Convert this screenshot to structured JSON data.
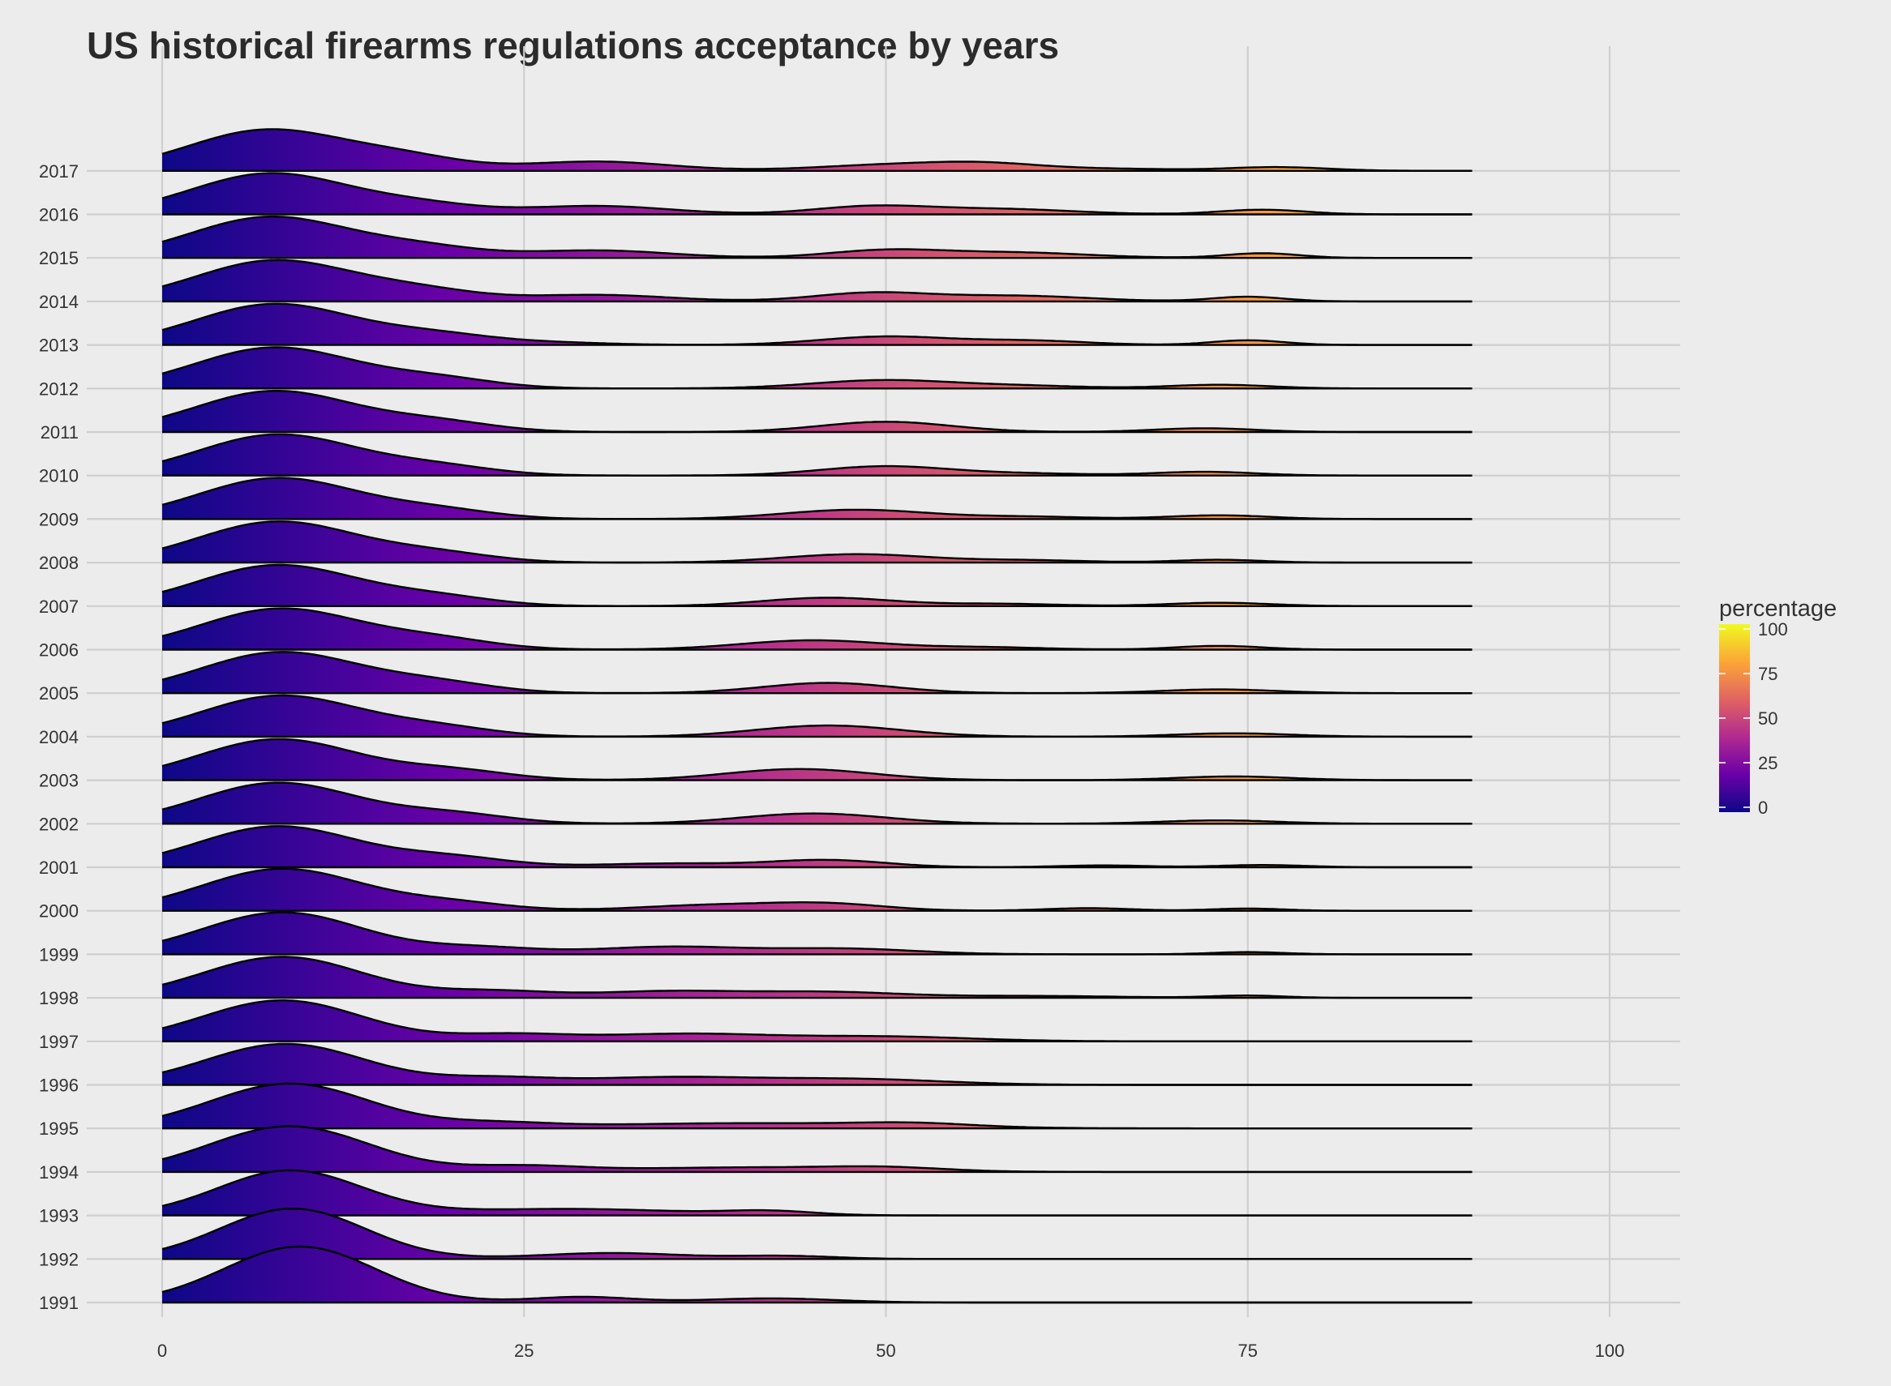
{
  "chart_data": {
    "type": "ridgeline",
    "title": "US historical firearms regulations acceptance by years",
    "xlabel": "",
    "ylabel": "",
    "xlim": [
      -5,
      105
    ],
    "x_ticks": [
      0,
      25,
      50,
      75,
      100
    ],
    "x_tick_labels": [
      "0",
      "25",
      "50",
      "75",
      "100"
    ],
    "density_range": [
      0,
      90.5
    ],
    "grid": true,
    "legend": {
      "title": "percentage",
      "placement": "right",
      "ticks": [
        0,
        25,
        50,
        75,
        100
      ],
      "tick_labels": [
        "0",
        "25",
        "50",
        "75",
        "100"
      ],
      "palette": [
        "#0d0887",
        "#6a00a8",
        "#b12a90",
        "#e16462",
        "#fca636",
        "#f0f921"
      ]
    },
    "series": [
      {
        "name": "1991",
        "peaks": [
          [
            9.5,
            3.0,
            5.2
          ],
          [
            29,
            0.3,
            3.5
          ],
          [
            42,
            0.22,
            4.5
          ]
        ]
      },
      {
        "name": "1992",
        "peaks": [
          [
            9.0,
            2.7,
            5.0
          ],
          [
            31,
            0.32,
            5.0
          ],
          [
            43,
            0.16,
            3.5
          ]
        ]
      },
      {
        "name": "1993",
        "peaks": [
          [
            8.8,
            2.4,
            5.0
          ],
          [
            28,
            0.35,
            8.0
          ],
          [
            42,
            0.2,
            3.0
          ]
        ]
      },
      {
        "name": "1994",
        "peaks": [
          [
            8.8,
            2.45,
            5.5
          ],
          [
            25,
            0.3,
            4.0
          ],
          [
            40,
            0.24,
            8.0
          ],
          [
            50,
            0.18,
            4.0
          ]
        ]
      },
      {
        "name": "1995",
        "peaks": [
          [
            8.8,
            2.4,
            5.5
          ],
          [
            23,
            0.25,
            4.0
          ],
          [
            40,
            0.28,
            10.0
          ],
          [
            52,
            0.18,
            4.0
          ]
        ]
      },
      {
        "name": "1996",
        "peaks": [
          [
            8.5,
            2.2,
            5.5
          ],
          [
            23,
            0.35,
            4.0
          ],
          [
            35,
            0.4,
            6.0
          ],
          [
            48,
            0.3,
            6.0
          ]
        ]
      },
      {
        "name": "1997",
        "peaks": [
          [
            8.3,
            2.2,
            5.5
          ],
          [
            24,
            0.35,
            4.0
          ],
          [
            36,
            0.4,
            6.0
          ],
          [
            50,
            0.25,
            6.0
          ]
        ]
      },
      {
        "name": "1998",
        "peaks": [
          [
            8.3,
            2.2,
            5.5
          ],
          [
            23,
            0.35,
            4.0
          ],
          [
            35,
            0.35,
            5.0
          ],
          [
            46,
            0.3,
            5.0
          ],
          [
            60,
            0.1,
            6.0
          ],
          [
            75,
            0.12,
            2.5
          ]
        ]
      },
      {
        "name": "1999",
        "peaks": [
          [
            8.3,
            2.25,
            5.5
          ],
          [
            22,
            0.35,
            4.0
          ],
          [
            35,
            0.4,
            5.0
          ],
          [
            47,
            0.3,
            5.0
          ],
          [
            75,
            0.12,
            2.5
          ]
        ]
      },
      {
        "name": "2000",
        "peaks": [
          [
            8.3,
            2.25,
            5.5
          ],
          [
            20,
            0.4,
            4.0
          ],
          [
            38,
            0.3,
            5.0
          ],
          [
            46,
            0.35,
            4.0
          ],
          [
            64,
            0.14,
            3.0
          ],
          [
            75,
            0.12,
            2.5
          ]
        ]
      },
      {
        "name": "2001",
        "peaks": [
          [
            8.0,
            2.2,
            5.5
          ],
          [
            20,
            0.5,
            4.0
          ],
          [
            35,
            0.2,
            5.0
          ],
          [
            46,
            0.38,
            4.0
          ],
          [
            65,
            0.1,
            3.0
          ],
          [
            76,
            0.12,
            3.0
          ]
        ]
      },
      {
        "name": "2002",
        "peaks": [
          [
            8.0,
            2.2,
            5.5
          ],
          [
            20,
            0.5,
            4.0
          ],
          [
            45,
            0.55,
            5.0
          ],
          [
            73,
            0.18,
            4.0
          ]
        ]
      },
      {
        "name": "2003",
        "peaks": [
          [
            8.0,
            2.2,
            5.5
          ],
          [
            20,
            0.5,
            4.0
          ],
          [
            44,
            0.6,
            5.0
          ],
          [
            74,
            0.2,
            4.0
          ]
        ]
      },
      {
        "name": "2004",
        "peaks": [
          [
            8.2,
            2.2,
            5.5
          ],
          [
            19,
            0.45,
            4.0
          ],
          [
            46,
            0.6,
            5.0
          ],
          [
            74,
            0.18,
            4.0
          ]
        ]
      },
      {
        "name": "2005",
        "peaks": [
          [
            8.2,
            2.2,
            5.5
          ],
          [
            19,
            0.5,
            4.0
          ],
          [
            46,
            0.55,
            4.5
          ],
          [
            73,
            0.2,
            4.0
          ]
        ]
      },
      {
        "name": "2006",
        "peaks": [
          [
            8.2,
            2.2,
            5.5
          ],
          [
            19,
            0.5,
            4.0
          ],
          [
            45,
            0.5,
            5.0
          ],
          [
            57,
            0.12,
            4.0
          ],
          [
            73,
            0.2,
            3.0
          ]
        ]
      },
      {
        "name": "2007",
        "peaks": [
          [
            8.0,
            2.2,
            5.5
          ],
          [
            19,
            0.45,
            4.0
          ],
          [
            46,
            0.45,
            4.5
          ],
          [
            58,
            0.12,
            4.0
          ],
          [
            73,
            0.18,
            3.5
          ]
        ]
      },
      {
        "name": "2008",
        "peaks": [
          [
            8.0,
            2.2,
            5.5
          ],
          [
            19,
            0.45,
            4.0
          ],
          [
            48,
            0.45,
            5.0
          ],
          [
            60,
            0.12,
            4.0
          ],
          [
            73,
            0.15,
            3.0
          ]
        ]
      },
      {
        "name": "2009",
        "peaks": [
          [
            8.0,
            2.2,
            5.5
          ],
          [
            19,
            0.45,
            4.0
          ],
          [
            48,
            0.5,
            5.0
          ],
          [
            60,
            0.12,
            4.0
          ],
          [
            73,
            0.2,
            3.5
          ]
        ]
      },
      {
        "name": "2010",
        "peaks": [
          [
            8.0,
            2.2,
            5.5
          ],
          [
            19,
            0.45,
            4.0
          ],
          [
            50,
            0.5,
            4.5
          ],
          [
            60,
            0.1,
            4.0
          ],
          [
            72,
            0.2,
            3.5
          ]
        ]
      },
      {
        "name": "2011",
        "peaks": [
          [
            7.8,
            2.2,
            5.5
          ],
          [
            19,
            0.5,
            4.0
          ],
          [
            50,
            0.55,
            4.5
          ],
          [
            72,
            0.2,
            3.5
          ]
        ]
      },
      {
        "name": "2012",
        "peaks": [
          [
            7.8,
            2.2,
            5.5
          ],
          [
            19,
            0.5,
            4.0
          ],
          [
            50,
            0.45,
            5.0
          ],
          [
            60,
            0.12,
            4.0
          ],
          [
            73,
            0.2,
            3.5
          ]
        ]
      },
      {
        "name": "2013",
        "peaks": [
          [
            7.8,
            2.2,
            5.5
          ],
          [
            19,
            0.5,
            4.0
          ],
          [
            27,
            0.12,
            4.0
          ],
          [
            50,
            0.45,
            4.5
          ],
          [
            60,
            0.22,
            4.0
          ],
          [
            75,
            0.25,
            2.5
          ]
        ]
      },
      {
        "name": "2014",
        "peaks": [
          [
            7.8,
            2.2,
            5.5
          ],
          [
            18,
            0.5,
            4.0
          ],
          [
            30,
            0.35,
            5.0
          ],
          [
            49,
            0.45,
            4.0
          ],
          [
            59,
            0.3,
            5.0
          ],
          [
            75,
            0.25,
            2.5
          ]
        ]
      },
      {
        "name": "2015",
        "peaks": [
          [
            7.5,
            2.2,
            5.5
          ],
          [
            18,
            0.5,
            4.0
          ],
          [
            30,
            0.4,
            5.0
          ],
          [
            50,
            0.4,
            4.0
          ],
          [
            59,
            0.28,
            5.0
          ],
          [
            76,
            0.25,
            2.5
          ]
        ]
      },
      {
        "name": "2016",
        "peaks": [
          [
            7.5,
            2.2,
            5.5
          ],
          [
            18,
            0.45,
            4.0
          ],
          [
            30,
            0.45,
            5.0
          ],
          [
            49,
            0.42,
            4.0
          ],
          [
            58,
            0.28,
            5.0
          ],
          [
            76,
            0.25,
            3.0
          ]
        ]
      },
      {
        "name": "2017",
        "peaks": [
          [
            7.3,
            2.2,
            5.5
          ],
          [
            17,
            0.6,
            4.0
          ],
          [
            30,
            0.5,
            5.0
          ],
          [
            50,
            0.3,
            5.0
          ],
          [
            57,
            0.35,
            4.0
          ],
          [
            66,
            0.1,
            4.0
          ],
          [
            77,
            0.2,
            3.5
          ]
        ]
      }
    ]
  }
}
